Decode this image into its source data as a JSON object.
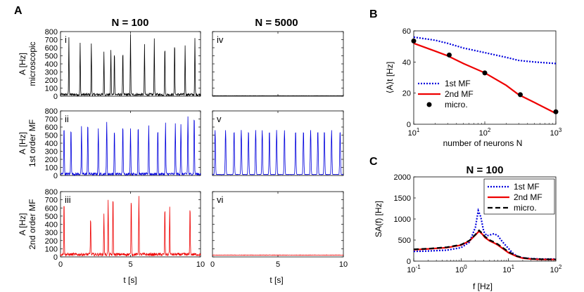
{
  "panel_letters": {
    "a": "A",
    "b": "B",
    "c": "C"
  },
  "chart_data": [
    {
      "id": "A",
      "type": "line",
      "column_titles": [
        "N = 100",
        "N = 5000"
      ],
      "xlabel": "t   [s]",
      "xticks": [
        0,
        5,
        10
      ],
      "xlim": [
        0,
        10
      ],
      "ylim": [
        0,
        800
      ],
      "yticks": [
        0,
        100,
        200,
        300,
        400,
        500,
        600,
        700,
        800
      ],
      "ylabel_unit": "A  [Hz]",
      "rows": [
        {
          "row_label": "microscopic",
          "color": "#000000",
          "panels": [
            {
              "roman": "i",
              "N": 100,
              "baseline": 20,
              "noise": 15,
              "width": 0.05,
              "peaks": [
                [
                  0.6,
                  700
                ],
                [
                  1.4,
                  640
                ],
                [
                  2.2,
                  640
                ],
                [
                  3.1,
                  520
                ],
                [
                  3.6,
                  560
                ],
                [
                  3.85,
                  560
                ],
                [
                  4.45,
                  560
                ],
                [
                  5.0,
                  740
                ],
                [
                  6.0,
                  610
                ],
                [
                  6.7,
                  690
                ],
                [
                  7.45,
                  620
                ],
                [
                  8.15,
                  670
                ],
                [
                  8.9,
                  610
                ],
                [
                  9.6,
                  690
                ]
              ]
            },
            {
              "roman": "iv",
              "N": 5000,
              "baseline": 5,
              "noise": 1,
              "width": 0.05,
              "peaks": []
            }
          ]
        },
        {
          "row_label": "1st order MF",
          "color": "#0000dd",
          "panels": [
            {
              "roman": "ii",
              "N": 100,
              "baseline": 18,
              "noise": 15,
              "width": 0.06,
              "peaks": [
                [
                  0.25,
                  610
                ],
                [
                  0.75,
                  590
                ],
                [
                  1.5,
                  580
                ],
                [
                  1.95,
                  640
                ],
                [
                  2.7,
                  570
                ],
                [
                  3.3,
                  640
                ],
                [
                  3.85,
                  560
                ],
                [
                  4.45,
                  620
                ],
                [
                  5.0,
                  560
                ],
                [
                  5.55,
                  610
                ],
                [
                  6.3,
                  600
                ],
                [
                  6.95,
                  580
                ],
                [
                  7.5,
                  640
                ],
                [
                  8.2,
                  620
                ],
                [
                  8.6,
                  610
                ],
                [
                  9.1,
                  720
                ],
                [
                  9.55,
                  740
                ]
              ]
            },
            {
              "roman": "v",
              "N": 5000,
              "baseline": 12,
              "noise": 2,
              "width": 0.08,
              "peaks": [
                [
                  0.2,
                  550
                ],
                [
                  1.0,
                  550
                ],
                [
                  1.65,
                  550
                ],
                [
                  2.2,
                  550
                ],
                [
                  2.75,
                  550
                ],
                [
                  3.3,
                  550
                ],
                [
                  3.8,
                  550
                ],
                [
                  4.35,
                  550
                ],
                [
                  4.9,
                  550
                ],
                [
                  5.5,
                  550
                ],
                [
                  6.35,
                  550
                ],
                [
                  6.95,
                  550
                ],
                [
                  7.5,
                  550
                ],
                [
                  8.05,
                  550
                ],
                [
                  8.55,
                  550
                ],
                [
                  9.1,
                  550
                ],
                [
                  9.75,
                  550
                ]
              ]
            }
          ]
        },
        {
          "row_label": "2nd order MF",
          "color": "#ee0000",
          "panels": [
            {
              "roman": "iii",
              "N": 100,
              "baseline": 30,
              "noise": 18,
              "width": 0.05,
              "peaks": [
                [
                  0.25,
                  700
                ],
                [
                  2.15,
                  480
                ],
                [
                  3.1,
                  510
                ],
                [
                  3.4,
                  660
                ],
                [
                  3.75,
                  750
                ],
                [
                  5.05,
                  720
                ],
                [
                  5.6,
                  730
                ],
                [
                  7.45,
                  610
                ],
                [
                  7.8,
                  580
                ],
                [
                  9.25,
                  620
                ]
              ]
            },
            {
              "roman": "vi",
              "N": 5000,
              "baseline": 22,
              "noise": 2,
              "width": 0.05,
              "peaks": []
            }
          ]
        }
      ]
    },
    {
      "id": "B",
      "type": "line",
      "x_scale": "log",
      "xlabel": "number of neurons N",
      "ylabel": "⟨A⟩_t [Hz]",
      "xlim": [
        10,
        1000
      ],
      "ylim": [
        0,
        60
      ],
      "yticks": [
        0,
        20,
        40,
        60
      ],
      "xticks": [
        {
          "value": 10,
          "base": "10",
          "exp": "1"
        },
        {
          "value": 100,
          "base": "10",
          "exp": "2"
        },
        {
          "value": 1000,
          "base": "10",
          "exp": "3"
        }
      ],
      "legend": "lower-left",
      "series": [
        {
          "name": "1st MF",
          "style": "dotted",
          "color": "#0000dd",
          "x": [
            10,
            20,
            30,
            50,
            100,
            200,
            300,
            500,
            1000
          ],
          "y": [
            56,
            54,
            52,
            49,
            46,
            43,
            41,
            40,
            39
          ]
        },
        {
          "name": "2nd MF",
          "style": "solid",
          "color": "#ee0000",
          "x": [
            10,
            20,
            30,
            50,
            100,
            200,
            300,
            500,
            1000
          ],
          "y": [
            52,
            47,
            44,
            39,
            33,
            25,
            19,
            14,
            7
          ]
        },
        {
          "name": "micro.",
          "style": "markers",
          "color": "#000000",
          "x": [
            10,
            31.6,
            100,
            316,
            1000
          ],
          "y": [
            53.5,
            44.5,
            33,
            19,
            8
          ]
        }
      ]
    },
    {
      "id": "C",
      "type": "line",
      "title": "N = 100",
      "x_scale": "log",
      "xlabel": "f   [Hz]",
      "ylabel": "S_A(f)  [Hz]",
      "xlim": [
        0.1,
        100
      ],
      "ylim": [
        0,
        2000
      ],
      "yticks": [
        0,
        500,
        1000,
        1500,
        2000
      ],
      "xticks": [
        {
          "value": 0.1,
          "base": "10",
          "exp": "-1"
        },
        {
          "value": 1,
          "base": "10",
          "exp": "0"
        },
        {
          "value": 10,
          "base": "10",
          "exp": "1"
        },
        {
          "value": 100,
          "base": "10",
          "exp": "2"
        }
      ],
      "legend": "top-right",
      "series": [
        {
          "name": "1st MF",
          "style": "dotted",
          "color": "#0000dd",
          "x": [
            0.1,
            0.2,
            0.5,
            1,
            1.5,
            2,
            2.3,
            2.6,
            3,
            3.5,
            4,
            5,
            6,
            7,
            8,
            10,
            12,
            15,
            20,
            30,
            50,
            100
          ],
          "y": [
            230,
            240,
            260,
            320,
            450,
            800,
            1200,
            1050,
            700,
            600,
            620,
            650,
            600,
            500,
            420,
            300,
            200,
            120,
            80,
            60,
            50,
            50
          ]
        },
        {
          "name": "2nd MF",
          "style": "solid",
          "color": "#ee0000",
          "x": [
            0.1,
            0.2,
            0.5,
            1,
            1.5,
            2,
            2.4,
            2.8,
            3.2,
            4,
            5,
            6,
            8,
            10,
            15,
            20,
            30,
            50,
            100
          ],
          "y": [
            270,
            290,
            320,
            380,
            480,
            620,
            710,
            640,
            560,
            480,
            430,
            380,
            280,
            200,
            110,
            70,
            50,
            40,
            40
          ]
        },
        {
          "name": "micro.",
          "style": "dashed",
          "color": "#000000",
          "x": [
            0.1,
            0.2,
            0.5,
            1,
            1.5,
            2,
            2.4,
            2.8,
            3.2,
            4,
            5,
            6,
            8,
            10,
            15,
            20,
            30,
            50,
            100
          ],
          "y": [
            280,
            295,
            330,
            390,
            490,
            630,
            730,
            660,
            580,
            500,
            450,
            400,
            300,
            220,
            120,
            80,
            55,
            45,
            40
          ]
        }
      ]
    }
  ]
}
